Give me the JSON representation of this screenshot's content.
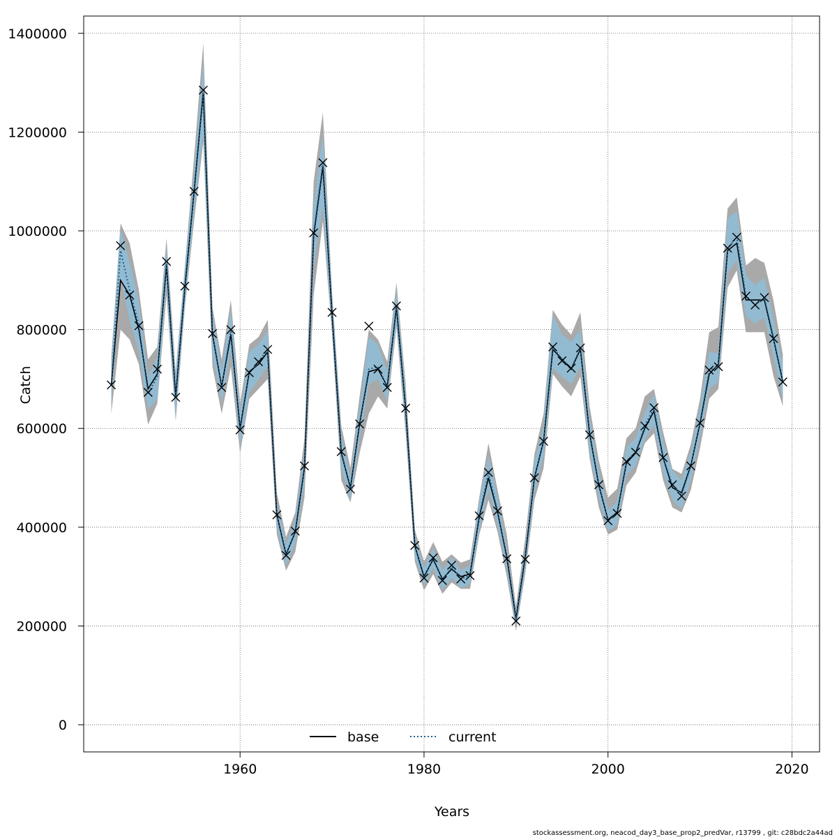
{
  "chart_data": {
    "type": "line",
    "title": "",
    "xlabel": "Years",
    "ylabel": "Catch",
    "xlim": [
      1943,
      2023
    ],
    "ylim": [
      -55000,
      1435000
    ],
    "xticks": [
      1960,
      1980,
      2000,
      2020
    ],
    "yticks": [
      0,
      200000,
      400000,
      600000,
      800000,
      1000000,
      1200000,
      1400000
    ],
    "grid": true,
    "legend": "bottom-center",
    "x": [
      1946,
      1947,
      1948,
      1949,
      1950,
      1951,
      1952,
      1953,
      1954,
      1955,
      1956,
      1957,
      1958,
      1959,
      1960,
      1961,
      1962,
      1963,
      1964,
      1965,
      1966,
      1967,
      1968,
      1969,
      1970,
      1971,
      1972,
      1973,
      1974,
      1975,
      1976,
      1977,
      1978,
      1979,
      1980,
      1981,
      1982,
      1983,
      1984,
      1985,
      1986,
      1987,
      1988,
      1989,
      1990,
      1991,
      1992,
      1993,
      1994,
      1995,
      1996,
      1997,
      1998,
      1999,
      2000,
      2001,
      2002,
      2003,
      2004,
      2005,
      2006,
      2007,
      2008,
      2009,
      2010,
      2011,
      2012,
      2013,
      2014,
      2015,
      2016,
      2017,
      2018,
      2019
    ],
    "series": [
      {
        "name": "base",
        "color": "#000000",
        "dash": "solid",
        "values": [
          688000,
          900000,
          870000,
          800000,
          680000,
          710000,
          930000,
          665000,
          885000,
          1080000,
          1280000,
          790000,
          685000,
          790000,
          600000,
          715000,
          730000,
          755000,
          425000,
          345000,
          390000,
          520000,
          990000,
          1130000,
          830000,
          550000,
          480000,
          610000,
          715000,
          720000,
          685000,
          845000,
          640000,
          362000,
          300000,
          335000,
          295000,
          315000,
          300000,
          305000,
          420000,
          500000,
          430000,
          340000,
          215000,
          340000,
          500000,
          575000,
          760000,
          740000,
          720000,
          760000,
          590000,
          485000,
          415000,
          430000,
          530000,
          550000,
          600000,
          635000,
          540000,
          480000,
          470000,
          525000,
          610000,
          710000,
          730000,
          960000,
          975000,
          860000,
          860000,
          860000,
          780000,
          695000
        ],
        "lower": [
          630000,
          800000,
          780000,
          730000,
          608000,
          650000,
          870000,
          615000,
          845000,
          1020000,
          1180000,
          725000,
          630000,
          725000,
          550000,
          660000,
          680000,
          700000,
          385000,
          312000,
          350000,
          460000,
          870000,
          1020000,
          790000,
          495000,
          450000,
          550000,
          630000,
          665000,
          640000,
          805000,
          590000,
          330000,
          272000,
          305000,
          265000,
          288000,
          275000,
          275000,
          385000,
          455000,
          390000,
          300000,
          190000,
          305000,
          455000,
          520000,
          710000,
          685000,
          665000,
          705000,
          540000,
          440000,
          385000,
          395000,
          485000,
          510000,
          570000,
          590000,
          495000,
          440000,
          430000,
          475000,
          560000,
          660000,
          680000,
          885000,
          920000,
          795000,
          795000,
          795000,
          705000,
          645000
        ],
        "upper": [
          745000,
          1015000,
          975000,
          880000,
          740000,
          765000,
          985000,
          715000,
          930000,
          1150000,
          1380000,
          845000,
          740000,
          860000,
          650000,
          770000,
          785000,
          820000,
          470000,
          380000,
          430000,
          580000,
          1100000,
          1240000,
          875000,
          605000,
          520000,
          665000,
          800000,
          780000,
          735000,
          895000,
          690000,
          395000,
          330000,
          370000,
          330000,
          345000,
          328000,
          335000,
          460000,
          570000,
          475000,
          385000,
          240000,
          378000,
          548000,
          630000,
          840000,
          810000,
          790000,
          835000,
          645000,
          535000,
          460000,
          478000,
          580000,
          600000,
          665000,
          680000,
          592000,
          518000,
          508000,
          568000,
          660000,
          795000,
          805000,
          1045000,
          1068000,
          930000,
          945000,
          935000,
          858000,
          750000
        ]
      },
      {
        "name": "current",
        "color": "#1f5f8b",
        "dash": "dotted",
        "values": [
          688000,
          960000,
          880000,
          810000,
          670000,
          705000,
          935000,
          662000,
          888000,
          1080000,
          1285000,
          792000,
          683000,
          800000,
          597000,
          713000,
          735000,
          760000,
          425000,
          343000,
          392000,
          524000,
          996000,
          1138000,
          835000,
          553000,
          477000,
          609000,
          720000,
          725000,
          683000,
          848000,
          641000,
          363000,
          297000,
          338000,
          292000,
          320000,
          295000,
          302000,
          423000,
          510000,
          433000,
          336000,
          212000,
          335000,
          500000,
          574000,
          765000,
          740000,
          722000,
          763000,
          587000,
          486000,
          413000,
          428000,
          533000,
          552000,
          605000,
          642000,
          541000,
          486000,
          465000,
          524000,
          611000,
          718000,
          725000,
          965000,
          987000,
          868000,
          850000,
          865000,
          782000,
          694000
        ],
        "lower": [
          650000,
          905000,
          820000,
          755000,
          638000,
          660000,
          895000,
          625000,
          850000,
          1040000,
          1200000,
          750000,
          650000,
          760000,
          565000,
          672000,
          700000,
          725000,
          400000,
          322000,
          368000,
          490000,
          930000,
          1050000,
          800000,
          520000,
          455000,
          578000,
          690000,
          700000,
          655000,
          815000,
          610000,
          340000,
          282000,
          318000,
          272000,
          298000,
          277000,
          285000,
          395000,
          478000,
          405000,
          315000,
          197000,
          315000,
          470000,
          545000,
          722000,
          705000,
          690000,
          725000,
          555000,
          458000,
          393000,
          405000,
          505000,
          525000,
          578000,
          608000,
          510000,
          455000,
          437000,
          495000,
          582000,
          680000,
          695000,
          915000,
          940000,
          828000,
          812000,
          825000,
          745000,
          660000
        ],
        "upper": [
          730000,
          1005000,
          935000,
          858000,
          705000,
          745000,
          970000,
          700000,
          925000,
          1120000,
          1340000,
          832000,
          718000,
          840000,
          630000,
          755000,
          770000,
          797000,
          450000,
          365000,
          415000,
          555000,
          1050000,
          1195000,
          868000,
          585000,
          500000,
          640000,
          785000,
          770000,
          715000,
          880000,
          672000,
          385000,
          318000,
          358000,
          312000,
          340000,
          313000,
          322000,
          450000,
          545000,
          462000,
          358000,
          228000,
          356000,
          530000,
          605000,
          830000,
          790000,
          775000,
          800000,
          620000,
          515000,
          435000,
          452000,
          562000,
          580000,
          632000,
          670000,
          572000,
          515000,
          495000,
          553000,
          642000,
          755000,
          752000,
          1025000,
          1040000,
          910000,
          890000,
          905000,
          820000,
          730000
        ]
      }
    ],
    "markers": {
      "symbol": "x",
      "values": [
        688000,
        970000,
        870000,
        808000,
        673000,
        720000,
        938000,
        663000,
        888000,
        1080000,
        1285000,
        792000,
        683000,
        800000,
        597000,
        713000,
        735000,
        760000,
        425000,
        343000,
        392000,
        524000,
        996000,
        1138000,
        835000,
        553000,
        477000,
        609000,
        807000,
        720000,
        683000,
        848000,
        641000,
        363000,
        297000,
        338000,
        292000,
        323000,
        295000,
        302000,
        423000,
        511000,
        433000,
        336000,
        210000,
        335000,
        500000,
        574000,
        765000,
        737000,
        722000,
        763000,
        587000,
        486000,
        413000,
        428000,
        533000,
        552000,
        605000,
        642000,
        541000,
        486000,
        463000,
        524000,
        611000,
        718000,
        725000,
        965000,
        987000,
        868000,
        850000,
        865000,
        782000,
        694000
      ]
    },
    "colors": {
      "base_band": "#a9a9a9",
      "current_band": "#8fbcd6",
      "current_line": "#1f5f8b"
    }
  },
  "legend": {
    "base_label": "base",
    "current_label": "current"
  },
  "footer": {
    "text": "stockassessment.org, neacod_day3_base_prop2_predVar, r13799 , git: c28bdc2a44ad"
  }
}
